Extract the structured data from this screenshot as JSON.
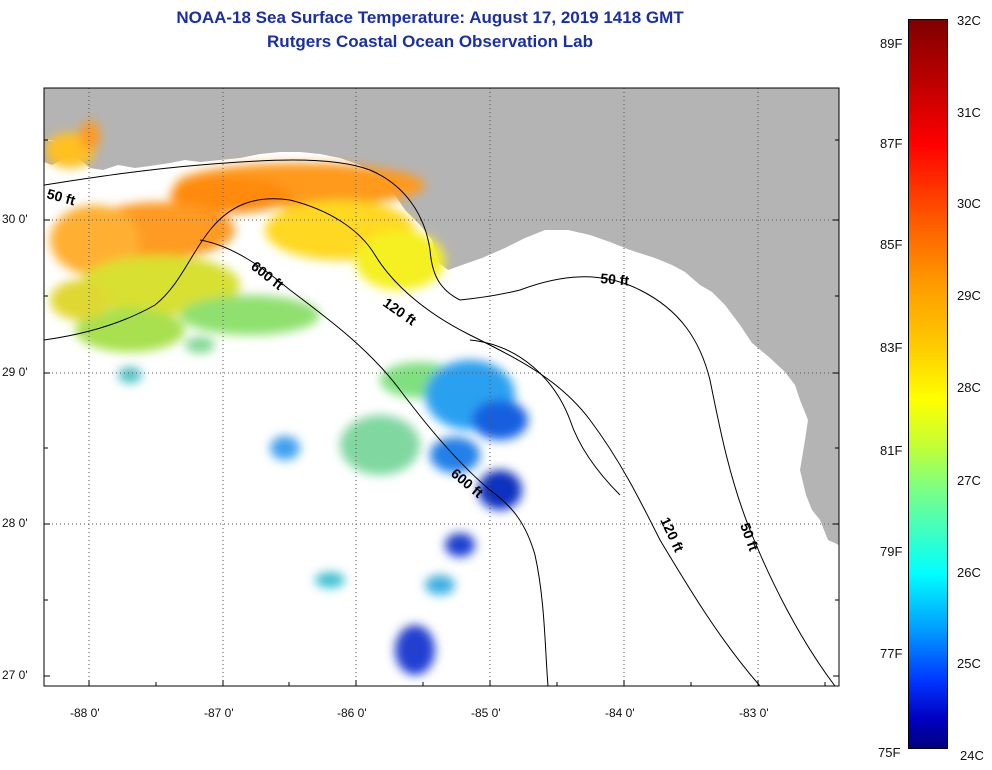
{
  "title": {
    "line1": "NOAA-18 Sea Surface Temperature:  August 17, 2019 1418 GMT",
    "line2": "Rutgers Coastal Ocean Observation Lab"
  },
  "colors": {
    "title": "#1a2fa6",
    "land": "#b4b4b4",
    "ocean": "#ffffff",
    "contour": "#000000"
  },
  "latitudes": [
    "30 0'",
    "29 0'",
    "28 0'",
    "27 0'"
  ],
  "longitudes": [
    "-88 0'",
    "-87 0'",
    "-86 0'",
    "-85 0'",
    "-84 0'",
    "-83 0'"
  ],
  "contours": [
    "50 ft",
    "600 ft",
    "120 ft",
    "50 ft",
    "600 ft",
    "120 ft",
    "50 ft"
  ],
  "colorbar": {
    "fahrenheit": [
      "89F",
      "87F",
      "85F",
      "83F",
      "81F",
      "79F",
      "77F",
      "75F"
    ],
    "celsius": [
      "32C",
      "31C",
      "30C",
      "29C",
      "28C",
      "27C",
      "26C",
      "25C",
      "24C"
    ]
  }
}
